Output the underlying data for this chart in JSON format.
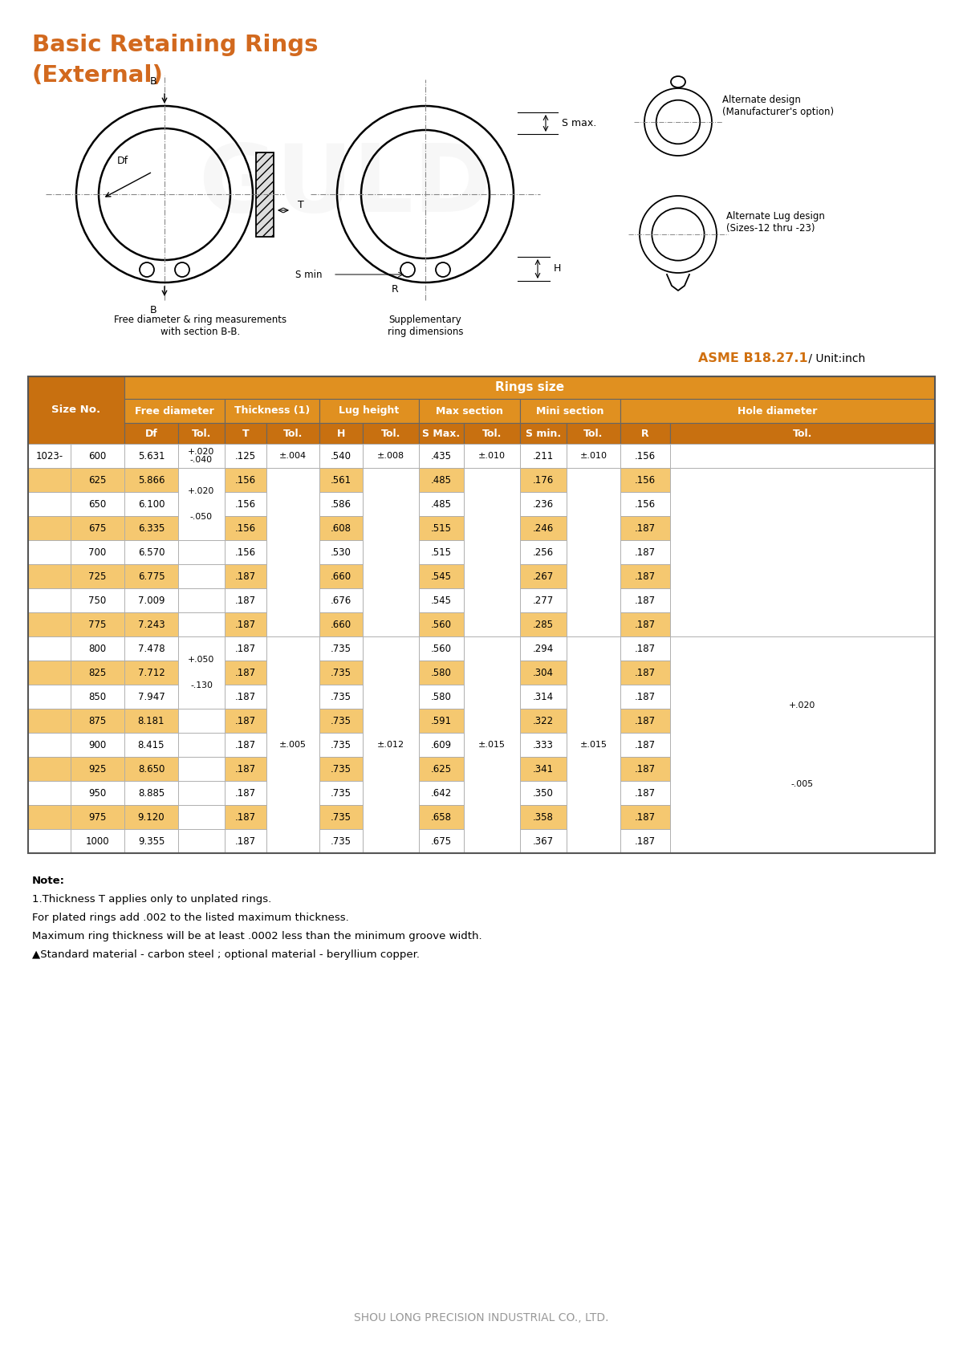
{
  "title_line1": "Basic Retaining Rings",
  "title_line2": "(External)",
  "title_color": "#D2691E",
  "asme_label": "ASME B18.27.1",
  "unit_label": " / Unit:inch",
  "bg_color": "#FFFFFF",
  "orange_dark": "#C87010",
  "orange_mid": "#E09020",
  "orange_header_color": "#D07010",
  "row_odd_bg": "#F5C870",
  "row_even_bg": "#FFFFFF",
  "border_color": "#AAAAAA",
  "alt_design_label": "Alternate design\n(Manufacturer's option)",
  "alt_lug_label": "Alternate Lug design\n(Sizes-12 thru -23)",
  "diagram_caption1": "Free diameter & ring measurements\nwith section B-B.",
  "diagram_caption2": "Supplementary\nring dimensions",
  "note_lines": [
    "Note:",
    "1.Thickness T applies only to unplated rings.",
    "For plated rings add .002 to the listed maximum thickness.",
    "Maximum ring thickness will be at least .0002 less than the minimum groove width.",
    "▲Standard material - carbon steel ; optional material - beryllium copper."
  ],
  "footer": "SHOU LONG PRECISION INDUSTRIAL CO., LTD.",
  "row_values": [
    [
      "1023-",
      "600",
      "5.631",
      ".125",
      ".540",
      ".435",
      ".211",
      ".156"
    ],
    [
      "",
      "625",
      "5.866",
      ".156",
      ".561",
      ".485",
      ".176",
      ".156"
    ],
    [
      "",
      "650",
      "6.100",
      ".156",
      ".586",
      ".485",
      ".236",
      ".156"
    ],
    [
      "",
      "675",
      "6.335",
      ".156",
      ".608",
      ".515",
      ".246",
      ".187"
    ],
    [
      "",
      "700",
      "6.570",
      ".156",
      ".530",
      ".515",
      ".256",
      ".187"
    ],
    [
      "",
      "725",
      "6.775",
      ".187",
      ".660",
      ".545",
      ".267",
      ".187"
    ],
    [
      "",
      "750",
      "7.009",
      ".187",
      ".676",
      ".545",
      ".277",
      ".187"
    ],
    [
      "",
      "775",
      "7.243",
      ".187",
      ".660",
      ".560",
      ".285",
      ".187"
    ],
    [
      "",
      "800",
      "7.478",
      ".187",
      ".735",
      ".560",
      ".294",
      ".187"
    ],
    [
      "",
      "825",
      "7.712",
      ".187",
      ".735",
      ".580",
      ".304",
      ".187"
    ],
    [
      "",
      "850",
      "7.947",
      ".187",
      ".735",
      ".580",
      ".314",
      ".187"
    ],
    [
      "",
      "875",
      "8.181",
      ".187",
      ".735",
      ".591",
      ".322",
      ".187"
    ],
    [
      "",
      "900",
      "8.415",
      ".187",
      ".735",
      ".609",
      ".333",
      ".187"
    ],
    [
      "",
      "925",
      "8.650",
      ".187",
      ".735",
      ".625",
      ".341",
      ".187"
    ],
    [
      "",
      "950",
      "8.885",
      ".187",
      ".735",
      ".642",
      ".350",
      ".187"
    ],
    [
      "",
      "975",
      "9.120",
      ".187",
      ".735",
      ".658",
      ".358",
      ".187"
    ],
    [
      "",
      "1000",
      "9.355",
      ".187",
      ".735",
      ".675",
      ".367",
      ".187"
    ]
  ],
  "highlight_rows": [
    1,
    3,
    5,
    7,
    9,
    11,
    13,
    15
  ]
}
